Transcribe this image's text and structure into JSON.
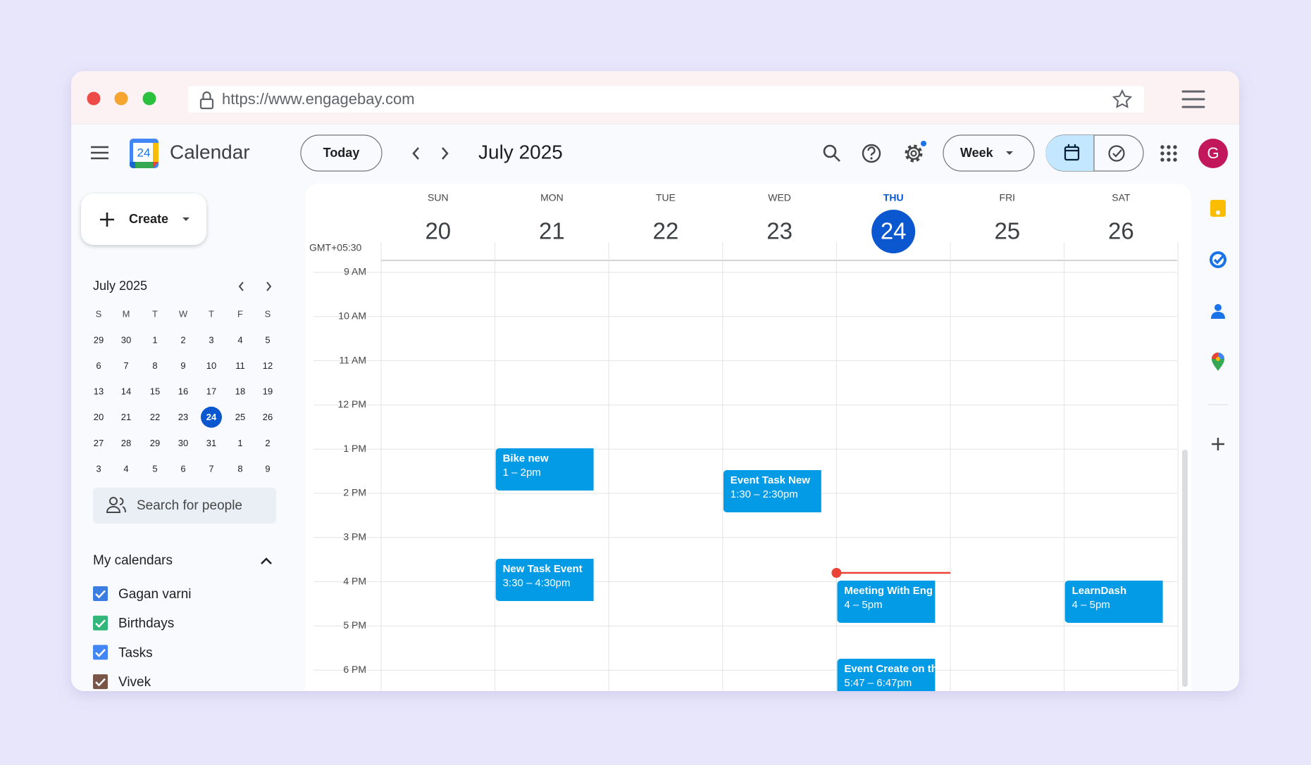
{
  "browser": {
    "url": "https://www.engagebay.com"
  },
  "header": {
    "logo_day": "24",
    "app_name": "Calendar",
    "today_button": "Today",
    "period": "July 2025",
    "view": "Week",
    "avatar": "G"
  },
  "create_button": "Create",
  "mini_calendar": {
    "title": "July 2025",
    "weekdays": [
      "S",
      "M",
      "T",
      "W",
      "T",
      "F",
      "S"
    ],
    "weeks": [
      [
        29,
        30,
        1,
        2,
        3,
        4,
        5
      ],
      [
        6,
        7,
        8,
        9,
        10,
        11,
        12
      ],
      [
        13,
        14,
        15,
        16,
        17,
        18,
        19
      ],
      [
        20,
        21,
        22,
        23,
        24,
        25,
        26
      ],
      [
        27,
        28,
        29,
        30,
        31,
        1,
        2
      ],
      [
        3,
        4,
        5,
        6,
        7,
        8,
        9
      ]
    ],
    "selected_cell": [
      3,
      4
    ]
  },
  "search_people": "Search for people",
  "my_calendars": {
    "title": "My calendars",
    "items": [
      {
        "name": "Gagan varni",
        "color": "#3b7de0"
      },
      {
        "name": "Birthdays",
        "color": "#33b679"
      },
      {
        "name": "Tasks",
        "color": "#4285f4"
      },
      {
        "name": "Vivek",
        "color": "#795548"
      }
    ]
  },
  "week": {
    "timezone": "GMT+05:30",
    "days": [
      {
        "dow": "SUN",
        "date": "20"
      },
      {
        "dow": "MON",
        "date": "21"
      },
      {
        "dow": "TUE",
        "date": "22"
      },
      {
        "dow": "WED",
        "date": "23"
      },
      {
        "dow": "THU",
        "date": "24"
      },
      {
        "dow": "FRI",
        "date": "25"
      },
      {
        "dow": "SAT",
        "date": "26"
      }
    ],
    "today_index": 4,
    "times": [
      "9 AM",
      "10 AM",
      "11 AM",
      "12 PM",
      "1 PM",
      "2 PM",
      "3 PM",
      "4 PM",
      "5 PM",
      "6 PM"
    ],
    "events": [
      {
        "title": "Bike new",
        "time": "1 – 2pm",
        "day": 1,
        "color": "#039be5"
      },
      {
        "title": "Event Task New",
        "time": "1:30 – 2:30pm",
        "day": 3,
        "color": "#039be5"
      },
      {
        "title": "New Task Event",
        "time": "3:30 – 4:30pm",
        "day": 1,
        "color": "#039be5"
      },
      {
        "title": "Meeting With Eng",
        "time": "4 – 5pm",
        "day": 4,
        "color": "#039be5"
      },
      {
        "title": "LearnDash",
        "time": "4 – 5pm",
        "day": 6,
        "color": "#039be5"
      },
      {
        "title": "Event Create on th",
        "time": "5:47 – 6:47pm",
        "day": 4,
        "color": "#039be5"
      }
    ]
  }
}
